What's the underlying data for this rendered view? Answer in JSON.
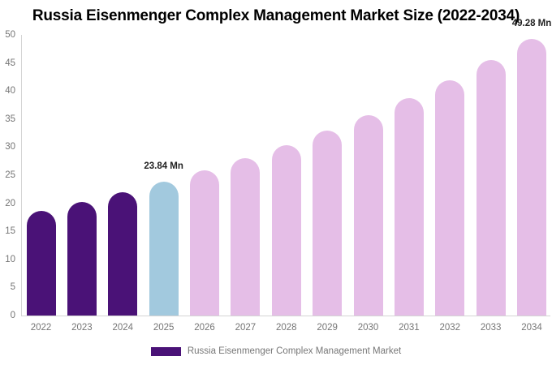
{
  "title": "Russia Eisenmenger Complex Management Market Size (2022-2034)",
  "chart_data": {
    "type": "bar",
    "title": "Russia Eisenmenger Complex Management Market Size (2022-2034)",
    "categories": [
      "2022",
      "2023",
      "2024",
      "2025",
      "2026",
      "2027",
      "2028",
      "2029",
      "2030",
      "2031",
      "2032",
      "2033",
      "2034"
    ],
    "values": [
      18.71,
      20.28,
      21.99,
      23.84,
      25.85,
      28.02,
      30.38,
      32.93,
      35.7,
      38.7,
      41.96,
      45.49,
      49.28
    ],
    "unit": "Mn",
    "segments": [
      "historical",
      "historical",
      "historical",
      "current",
      "forecast",
      "forecast",
      "forecast",
      "forecast",
      "forecast",
      "forecast",
      "forecast",
      "forecast",
      "forecast"
    ],
    "annotations": [
      {
        "category": "2025",
        "text": "23.84 Mn"
      },
      {
        "category": "2034",
        "text": "49.28 Mn"
      }
    ],
    "xlabel": "",
    "ylabel": "",
    "ylim": [
      0,
      50
    ],
    "yticks": [
      0,
      5,
      10,
      15,
      20,
      25,
      30,
      35,
      40,
      45,
      50
    ],
    "grid": false,
    "legend_position": "bottom",
    "colors": {
      "historical": "#4A1277",
      "current": "#A2C9DE",
      "forecast": "#E5BEE7",
      "axis_line": "#d4d4d4",
      "tick_text": "#757575",
      "annotation_text": "#222222",
      "title_text": "#000000"
    },
    "legend": {
      "label": "Russia Eisenmenger Complex Management Market",
      "swatch_color": "#4A1277"
    }
  }
}
